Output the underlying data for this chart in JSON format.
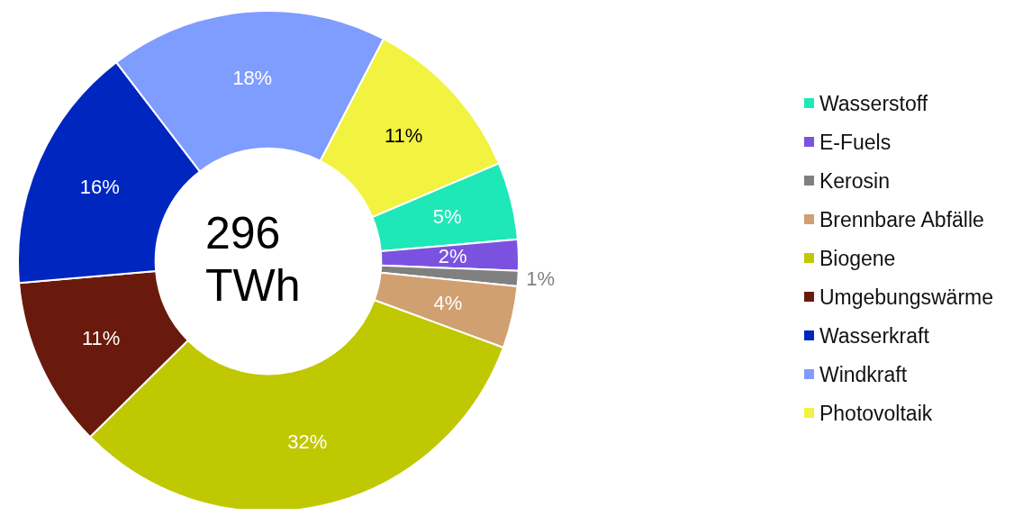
{
  "chart_data": {
    "type": "donut",
    "annotations": [
      "296 TWh"
    ],
    "categories": [
      "Wasserstoff",
      "E-Fuels",
      "Kerosin",
      "Brennbare Abfälle",
      "Biogene",
      "Umgebungswärme",
      "Wasserkraft",
      "Windkraft",
      "Photovoltaik"
    ],
    "values": [
      5,
      2,
      1,
      4,
      32,
      11,
      16,
      18,
      11
    ],
    "colors": [
      "#1ee8b8",
      "#7b52e0",
      "#808080",
      "#d0a070",
      "#bfc800",
      "#6a1a0c",
      "#0026c0",
      "#7f9cff",
      "#f2f240"
    ],
    "value_labels": [
      "5%",
      "2%",
      "1%",
      "4%",
      "32%",
      "11%",
      "16%",
      "18%",
      "11%"
    ],
    "legend": "right"
  }
}
